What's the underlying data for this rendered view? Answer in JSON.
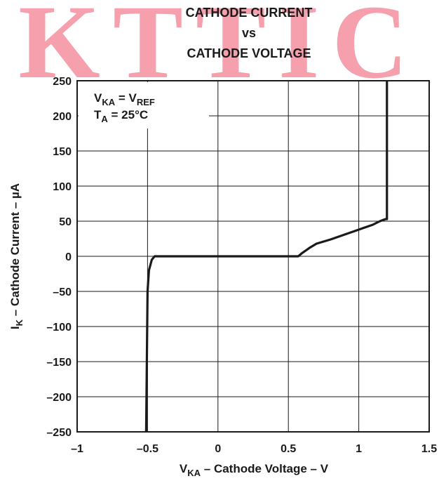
{
  "chart_data": {
    "type": "line",
    "watermark": "KTTIC",
    "title": [
      "CATHODE CURRENT",
      "vs",
      "CATHODE VOLTAGE"
    ],
    "annotations": [
      [
        "V",
        "KA",
        " = V",
        "REF"
      ],
      [
        "T",
        "A",
        " = 25°C"
      ]
    ],
    "xlabel": [
      "V",
      "KA",
      " – Cathode Voltage – V"
    ],
    "ylabel": [
      "I",
      "K",
      " – Cathode Current – µA"
    ],
    "x": [
      -0.51,
      -0.5,
      -0.49,
      -0.47,
      -0.45,
      -0.42,
      0.55,
      0.57,
      0.6,
      0.65,
      0.7,
      0.8,
      0.9,
      1.0,
      1.1,
      1.15,
      1.19,
      1.2,
      1.2
    ],
    "series": [
      {
        "color": "#1a1a1a",
        "values": [
          -250,
          -50,
          -20,
          -5,
          0,
          0,
          0,
          0,
          5,
          12,
          18,
          24,
          31,
          38,
          45,
          50,
          53,
          53,
          250
        ]
      }
    ],
    "xlim": [
      -1,
      1.5
    ],
    "ylim": [
      -250,
      250
    ],
    "xticks": [
      {
        "value": -1,
        "label": "–1"
      },
      {
        "value": -0.5,
        "label": "–0.5"
      },
      0,
      0.5,
      1,
      1.5
    ],
    "yticks": [
      {
        "value": -250,
        "label": "–250"
      },
      {
        "value": -200,
        "label": "–200"
      },
      {
        "value": -150,
        "label": "–150"
      },
      {
        "value": -100,
        "label": "–100"
      },
      {
        "value": -50,
        "label": "–50"
      },
      0,
      50,
      100,
      150,
      200,
      250
    ],
    "grid": true
  }
}
